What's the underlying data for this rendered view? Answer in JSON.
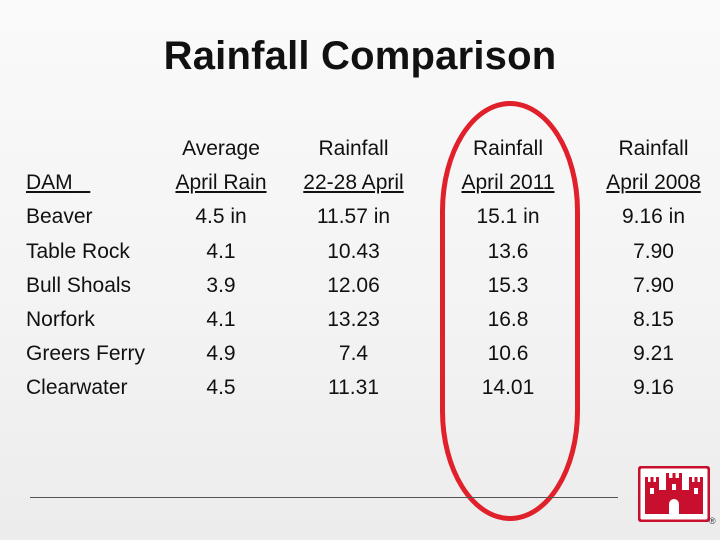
{
  "title": "Rainfall Comparison",
  "columns": {
    "dam": {
      "header": [
        "",
        "DAM"
      ],
      "values": [
        "Beaver",
        "Table Rock",
        "Bull Shoals",
        "Norfork",
        "Greers Ferry",
        "Clearwater"
      ]
    },
    "average_april": {
      "header": [
        "Average",
        "April Rain"
      ],
      "values": [
        "4.5 in",
        "4.1",
        "3.9",
        "4.1",
        "4.9",
        "4.5"
      ]
    },
    "rainfall_22_28_april": {
      "header": [
        "Rainfall",
        "22-28 April"
      ],
      "values": [
        "11.57 in",
        "10.43",
        "12.06",
        "13.23",
        "7.4",
        "11.31"
      ]
    },
    "rainfall_april_2011": {
      "header": [
        "Rainfall",
        "April 2011"
      ],
      "values": [
        "15.1 in",
        "13.6",
        "15.3",
        "16.8",
        "10.6",
        "14.01"
      ]
    },
    "rainfall_april_2008": {
      "header": [
        "Rainfall",
        "April 2008"
      ],
      "values": [
        "9.16 in",
        "7.90",
        "7.90",
        "8.15",
        "9.21",
        "9.16"
      ]
    }
  },
  "highlight_color": "#e0202a",
  "logo": {
    "icon": "castle-icon",
    "color": "#c8102e",
    "mark": "®"
  }
}
